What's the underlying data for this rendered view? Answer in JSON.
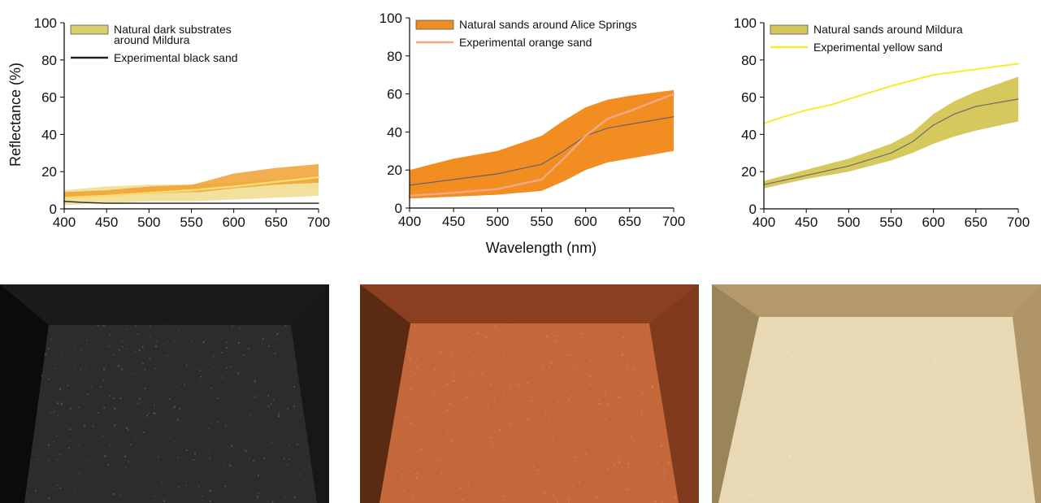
{
  "chart_data": [
    {
      "type": "line",
      "id": "black",
      "xlabel": "",
      "ylabel": "Reflectance (%)",
      "xlim": [
        400,
        700
      ],
      "ylim": [
        0,
        100
      ],
      "xticks": [
        "400",
        "450",
        "500",
        "550",
        "600",
        "650",
        "700"
      ],
      "yticks": [
        "0",
        "20",
        "40",
        "60",
        "80",
        "100"
      ],
      "legend_position": "top-left",
      "legend": [
        {
          "label": "Natural dark substrates around Mildura",
          "lines": [
            "Natural dark substrates",
            "around Mildura"
          ],
          "kind": "band",
          "color": "#d9cf6b"
        },
        {
          "label": "Experimental black sand",
          "lines": [
            "Experimental black sand"
          ],
          "kind": "line",
          "color": "#222222"
        }
      ],
      "series": [
        {
          "name": "Natural dark substrates around Mildura",
          "kind": "band",
          "color": "#eedc8c",
          "opacity": 0.85,
          "x": [
            400,
            450,
            500,
            550,
            600,
            650,
            700
          ],
          "low": [
            2,
            3,
            4,
            4,
            5,
            6,
            7
          ],
          "high": [
            10,
            12,
            13,
            13,
            14,
            16,
            18
          ]
        },
        {
          "name": "",
          "kind": "band",
          "color": "#f0a030",
          "opacity": 0.85,
          "x": [
            400,
            450,
            500,
            550,
            560,
            600,
            650,
            700
          ],
          "low": [
            6,
            7,
            8,
            9,
            9,
            11,
            13,
            14
          ],
          "high": [
            9,
            10,
            12,
            13,
            14,
            19,
            22,
            24
          ]
        },
        {
          "name": "",
          "kind": "line",
          "color": "#f6dc6e",
          "width": 2.5,
          "x": [
            400,
            450,
            500,
            550,
            600,
            650,
            700
          ],
          "y": [
            6,
            7,
            8.5,
            10,
            12,
            14.5,
            17
          ]
        },
        {
          "name": "Experimental black sand",
          "kind": "line",
          "color": "#333333",
          "width": 1.5,
          "x": [
            400,
            420,
            450,
            500,
            550,
            600,
            650,
            700
          ],
          "y": [
            4,
            3.5,
            3,
            3,
            3,
            3,
            3,
            3
          ]
        }
      ]
    },
    {
      "type": "line",
      "id": "orange",
      "xlabel": "Wavelength (nm)",
      "ylabel": "",
      "xlim": [
        400,
        700
      ],
      "ylim": [
        0,
        100
      ],
      "xticks": [
        "400",
        "450",
        "500",
        "550",
        "600",
        "650",
        "700"
      ],
      "yticks": [
        "0",
        "20",
        "40",
        "60",
        "80",
        "100"
      ],
      "legend_position": "top-left",
      "legend": [
        {
          "label": "Natural sands around Alice Springs",
          "lines": [
            "Natural sands around Alice Springs"
          ],
          "kind": "band",
          "color": "#ef8c22"
        },
        {
          "label": "Experimental orange sand",
          "lines": [
            "Experimental orange sand"
          ],
          "kind": "line",
          "color": "#f5a683"
        }
      ],
      "series": [
        {
          "name": "Natural sands around Alice Springs",
          "kind": "band",
          "color": "#f18d21",
          "opacity": 1,
          "x": [
            400,
            450,
            500,
            550,
            575,
            600,
            625,
            650,
            700
          ],
          "low": [
            5,
            6,
            7,
            9,
            14,
            20,
            24,
            26,
            30
          ],
          "high": [
            20,
            26,
            30,
            38,
            46,
            53,
            57,
            59,
            62
          ]
        },
        {
          "name": "",
          "kind": "line",
          "color": "#6e6070",
          "width": 1.2,
          "x": [
            400,
            450,
            500,
            550,
            575,
            600,
            625,
            650,
            700
          ],
          "y": [
            12,
            15,
            18,
            23,
            30,
            38,
            42,
            44,
            48
          ]
        },
        {
          "name": "Experimental orange sand",
          "kind": "line",
          "color": "#f5a683",
          "width": 2.5,
          "x": [
            400,
            450,
            500,
            550,
            575,
            600,
            625,
            650,
            700
          ],
          "y": [
            6.5,
            8,
            10,
            15,
            26,
            38,
            47,
            51,
            60
          ]
        }
      ]
    },
    {
      "type": "line",
      "id": "yellow",
      "xlabel": "",
      "ylabel": "",
      "xlim": [
        400,
        700
      ],
      "ylim": [
        0,
        100
      ],
      "xticks": [
        "400",
        "450",
        "500",
        "550",
        "600",
        "650",
        "700"
      ],
      "yticks": [
        "0",
        "20",
        "40",
        "60",
        "80",
        "100"
      ],
      "legend_position": "top-left",
      "legend": [
        {
          "label": "Natural sands around Mildura",
          "lines": [
            "Natural sands around Mildura"
          ],
          "kind": "band",
          "color": "#d2c65a"
        },
        {
          "label": "Experimental yellow sand",
          "lines": [
            "Experimental yellow sand"
          ],
          "kind": "line",
          "color": "#f7ec2c"
        }
      ],
      "series": [
        {
          "name": "Natural sands around Mildura",
          "kind": "band",
          "color": "#d5c95e",
          "opacity": 1,
          "x": [
            400,
            450,
            500,
            550,
            575,
            600,
            625,
            650,
            700
          ],
          "low": [
            11,
            16,
            20,
            26,
            30,
            35,
            39,
            42,
            47
          ],
          "high": [
            15,
            21,
            27,
            35,
            41,
            51,
            58,
            63,
            71
          ]
        },
        {
          "name": "",
          "kind": "line",
          "color": "#6e6a70",
          "width": 1.2,
          "x": [
            400,
            450,
            500,
            550,
            575,
            600,
            625,
            650,
            700
          ],
          "y": [
            13,
            18,
            23,
            30,
            36,
            45,
            51,
            55,
            59
          ]
        },
        {
          "name": "Experimental yellow sand",
          "kind": "line",
          "color": "#f7ec2c",
          "width": 2,
          "x": [
            400,
            420,
            450,
            480,
            500,
            550,
            600,
            650,
            700
          ],
          "y": [
            46,
            49,
            53,
            56,
            59,
            66,
            72,
            75,
            78
          ]
        }
      ]
    }
  ],
  "photos": [
    {
      "subject": "black sand in box",
      "colors": {
        "outer": "#0b0b0c",
        "walls": "#1a1a1c",
        "floor": "#2b2c2e",
        "grain": "#6a6c70"
      }
    },
    {
      "subject": "orange sand in box",
      "colors": {
        "outer": "#5a2a12",
        "walls": "#8a4020",
        "floor": "#c4683c",
        "grain": "#d88a5e"
      }
    },
    {
      "subject": "yellow sand in box",
      "colors": {
        "outer": "#9a845a",
        "walls": "#b49a6a",
        "floor": "#e8d8b4",
        "grain": "#f3e8cc"
      }
    }
  ]
}
